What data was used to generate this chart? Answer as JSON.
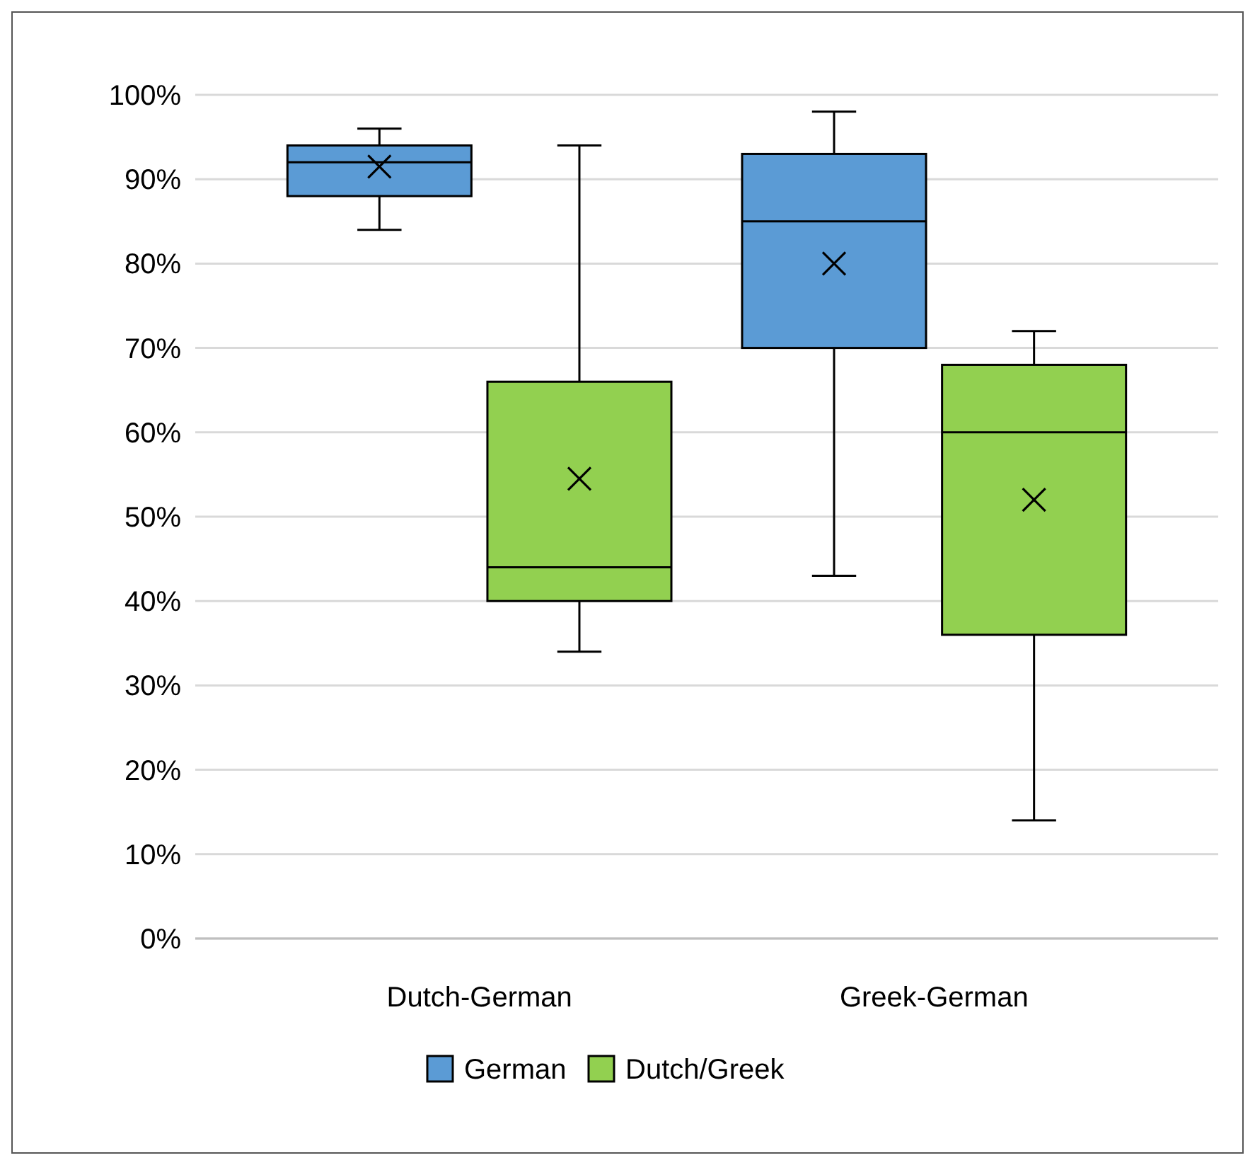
{
  "chart_data": {
    "type": "box",
    "categories": [
      "Dutch-German",
      "Greek-German"
    ],
    "ylim": [
      0,
      1
    ],
    "yticks": [
      {
        "value": 0,
        "label": "0%"
      },
      {
        "value": 0.1,
        "label": "10%"
      },
      {
        "value": 0.2,
        "label": "20%"
      },
      {
        "value": 0.3,
        "label": "30%"
      },
      {
        "value": 0.4,
        "label": "40%"
      },
      {
        "value": 0.5,
        "label": "50%"
      },
      {
        "value": 0.6,
        "label": "60%"
      },
      {
        "value": 0.7,
        "label": "70%"
      },
      {
        "value": 0.8,
        "label": "80%"
      },
      {
        "value": 0.9,
        "label": "90%"
      },
      {
        "value": 1,
        "label": "100%"
      }
    ],
    "grid": "y",
    "legend": "bottom",
    "marker": "cross",
    "series": [
      {
        "name": "German",
        "color": "#5b9bd5",
        "boxes": [
          {
            "low": 0.84,
            "q1": 0.88,
            "median": 0.92,
            "q3": 0.94,
            "high": 0.96,
            "mean": 0.915
          },
          {
            "low": 0.43,
            "q1": 0.7,
            "median": 0.85,
            "q3": 0.93,
            "high": 0.98,
            "mean": 0.8
          }
        ]
      },
      {
        "name": "Dutch/Greek",
        "color": "#92d050",
        "boxes": [
          {
            "low": 0.34,
            "q1": 0.4,
            "median": 0.44,
            "q3": 0.66,
            "high": 0.94,
            "mean": 0.545
          },
          {
            "low": 0.14,
            "q1": 0.36,
            "median": 0.6,
            "q3": 0.68,
            "high": 0.72,
            "mean": 0.52
          }
        ]
      }
    ]
  }
}
